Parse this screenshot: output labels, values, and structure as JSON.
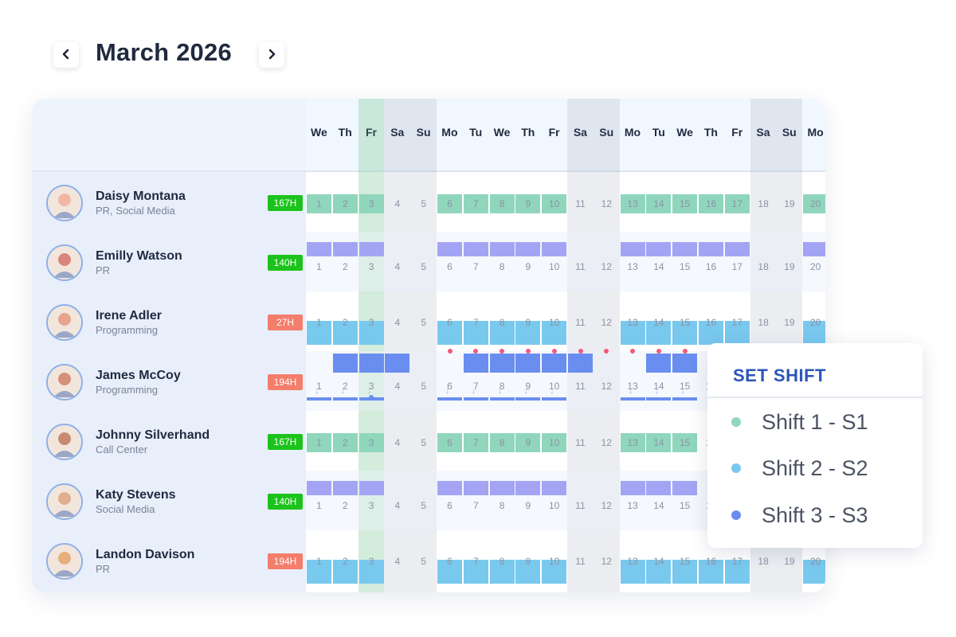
{
  "calendar": {
    "month_title": "March 2026",
    "prev_icon": "chevron-left-icon",
    "next_icon": "chevron-right-icon",
    "days": [
      "We",
      "Th",
      "Fr",
      "Sa",
      "Su",
      "Mo",
      "Tu",
      "We",
      "Th",
      "Fr",
      "Sa",
      "Su",
      "Mo",
      "Tu",
      "We",
      "Th",
      "Fr",
      "Sa",
      "Su",
      "Mo"
    ],
    "dates": [
      "1",
      "2",
      "3",
      "4",
      "5",
      "6",
      "7",
      "8",
      "9",
      "10",
      "11",
      "12",
      "13",
      "14",
      "15",
      "16",
      "17",
      "18",
      "19",
      "20"
    ],
    "today_index": 2,
    "weekend_indices": [
      3,
      4,
      10,
      11,
      17,
      18
    ]
  },
  "colors": {
    "shift1": "#8fd6bd",
    "shift2": "#79c8ee",
    "shift3": "#6a8ef0",
    "lavender": "#a4a4f5",
    "hours_ok": "#1cc31c",
    "hours_low": "#f47d6c",
    "dot": "#f25a7a"
  },
  "employees": [
    {
      "name": "Daisy Montana",
      "role": "PR, Social Media",
      "hours": "167H",
      "hours_status": "ok",
      "pattern": "mint",
      "avatar_color": "#f4b6a4",
      "active_days": [
        0,
        1,
        2,
        5,
        6,
        7,
        8,
        9,
        12,
        13,
        14,
        15,
        16,
        19
      ]
    },
    {
      "name": "Emilly Watson",
      "role": "PR",
      "hours": "140H",
      "hours_status": "ok",
      "pattern": "lavender",
      "avatar_color": "#d9867a",
      "active_days": [
        0,
        1,
        2,
        5,
        6,
        7,
        8,
        9,
        12,
        13,
        14,
        15,
        16,
        19
      ]
    },
    {
      "name": "Irene Adler",
      "role": "Programming",
      "hours": "27H",
      "hours_status": "low",
      "pattern": "blue",
      "avatar_color": "#e8a48e",
      "active_days": [
        0,
        1,
        2,
        5,
        6,
        7,
        8,
        9,
        12,
        13,
        14,
        15,
        16,
        19
      ]
    },
    {
      "name": "James McCoy",
      "role": "Programming",
      "hours": "194H",
      "hours_status": "low",
      "pattern": "royal",
      "avatar_color": "#d49078",
      "active_days": [
        1,
        2,
        3,
        6,
        7,
        8,
        9,
        10,
        13,
        14
      ]
    },
    {
      "name": "Johnny Silverhand",
      "role": "Call Center",
      "hours": "167H",
      "hours_status": "ok",
      "pattern": "mint",
      "avatar_color": "#c98a72",
      "active_days": [
        0,
        1,
        2,
        5,
        6,
        7,
        8,
        9,
        12,
        13,
        14
      ]
    },
    {
      "name": "Katy Stevens",
      "role": "Social Media",
      "hours": "140H",
      "hours_status": "ok",
      "pattern": "lavender",
      "avatar_color": "#e0b08e",
      "active_days": [
        0,
        1,
        2,
        5,
        6,
        7,
        8,
        9,
        12,
        13,
        14
      ]
    },
    {
      "name": "Landon Davison",
      "role": "PR",
      "hours": "194H",
      "hours_status": "low",
      "pattern": "blue",
      "avatar_color": "#e6b07e",
      "active_days": [
        0,
        1,
        2,
        5,
        6,
        7,
        8,
        9,
        12,
        13,
        14,
        15,
        16,
        19
      ]
    }
  ],
  "shift_menu": {
    "title": "SET SHIFT",
    "items": [
      {
        "label": "Shift 1 - S1",
        "color": "#8fd6bd"
      },
      {
        "label": "Shift 2 - S2",
        "color": "#79c8ee"
      },
      {
        "label": "Shift 3 - S3",
        "color": "#6a8ef0"
      }
    ]
  }
}
